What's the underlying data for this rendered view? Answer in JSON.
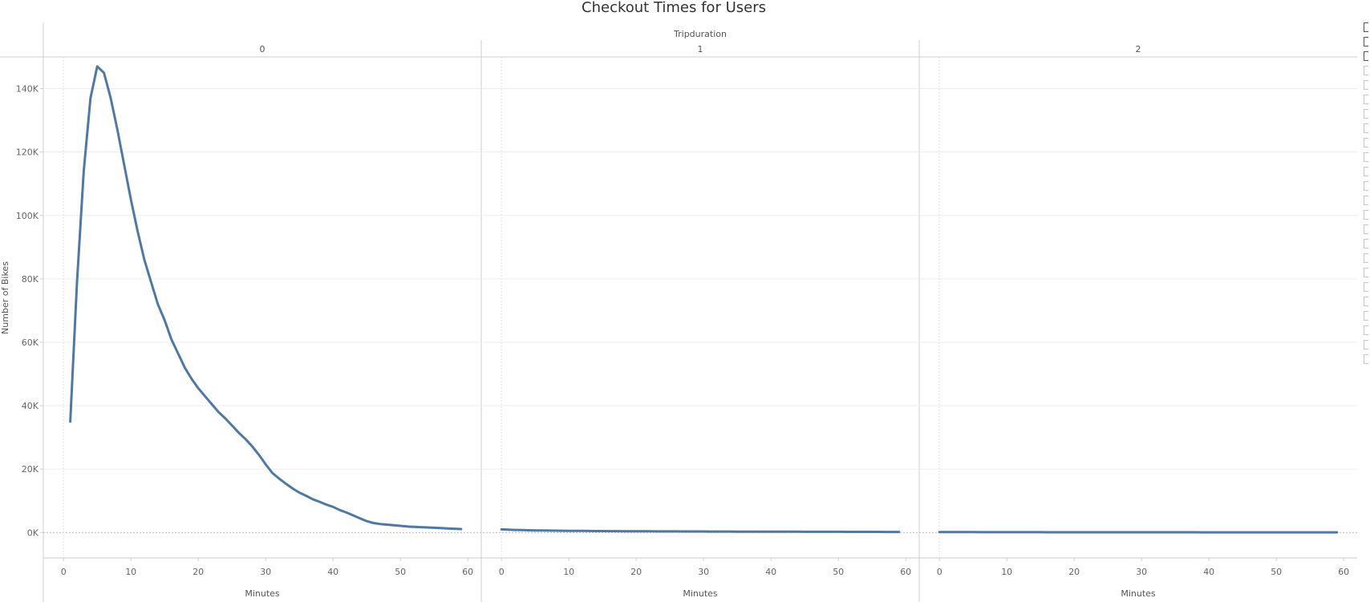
{
  "chart_data": {
    "type": "line",
    "title": "Checkout Times for Users",
    "column_header": "Tripduration",
    "ylabel": "Number of Bikes",
    "xlabel": "Minutes",
    "ylim": [
      -8000,
      150000
    ],
    "xlim": [
      -3,
      62
    ],
    "y_ticks": [
      0,
      20000,
      40000,
      60000,
      80000,
      100000,
      120000,
      140000
    ],
    "y_tick_labels": [
      "0K",
      "20K",
      "40K",
      "60K",
      "80K",
      "100K",
      "120K",
      "140K"
    ],
    "x_ticks": [
      0,
      10,
      20,
      30,
      40,
      50,
      60
    ],
    "x_tick_labels": [
      "0",
      "10",
      "20",
      "30",
      "40",
      "50",
      "60"
    ],
    "grid": true,
    "line_color": "#4e79a7",
    "panels": [
      {
        "label": "0",
        "x": [
          1,
          2,
          3,
          4,
          5,
          6,
          7,
          8,
          9,
          10,
          11,
          12,
          13,
          14,
          15,
          16,
          17,
          18,
          19,
          20,
          21,
          22,
          23,
          24,
          25,
          26,
          27,
          28,
          29,
          30,
          31,
          32,
          33,
          34,
          35,
          36,
          37,
          38,
          39,
          40,
          41,
          42,
          43,
          44,
          45,
          46,
          47,
          48,
          49,
          50,
          51,
          52,
          53,
          54,
          55,
          56,
          57,
          58,
          59
        ],
        "y": [
          35000,
          79000,
          114000,
          137000,
          147000,
          145000,
          137000,
          127000,
          116000,
          105000,
          95000,
          86000,
          79000,
          72000,
          67000,
          61000,
          56500,
          52000,
          48500,
          45500,
          43000,
          40500,
          38000,
          36000,
          33800,
          31500,
          29500,
          27200,
          24500,
          21500,
          18800,
          17000,
          15400,
          13900,
          12600,
          11600,
          10500,
          9700,
          8800,
          8100,
          7100,
          6300,
          5400,
          4500,
          3600,
          3000,
          2700,
          2500,
          2300,
          2100,
          1900,
          1800,
          1700,
          1600,
          1500,
          1400,
          1300,
          1200,
          1100
        ]
      },
      {
        "label": "1",
        "x": [
          0,
          1,
          2,
          3,
          4,
          5,
          6,
          7,
          8,
          9,
          10,
          11,
          12,
          13,
          14,
          15,
          16,
          17,
          18,
          19,
          20,
          21,
          22,
          23,
          24,
          25,
          26,
          27,
          28,
          29,
          30,
          31,
          32,
          33,
          34,
          35,
          36,
          37,
          38,
          39,
          40,
          41,
          42,
          43,
          44,
          45,
          46,
          47,
          48,
          49,
          50,
          51,
          52,
          53,
          54,
          55,
          56,
          57,
          58,
          59
        ],
        "y": [
          1000,
          900,
          820,
          760,
          710,
          670,
          640,
          610,
          590,
          570,
          550,
          530,
          510,
          495,
          480,
          465,
          450,
          440,
          430,
          420,
          410,
          400,
          390,
          380,
          372,
          365,
          358,
          350,
          343,
          336,
          330,
          324,
          318,
          312,
          306,
          300,
          295,
          290,
          285,
          280,
          275,
          270,
          265,
          260,
          255,
          250,
          246,
          242,
          238,
          234,
          230,
          226,
          222,
          218,
          214,
          210,
          206,
          202,
          198,
          195
        ]
      },
      {
        "label": "2",
        "x": [
          0,
          1,
          2,
          3,
          4,
          5,
          6,
          7,
          8,
          9,
          10,
          11,
          12,
          13,
          14,
          15,
          16,
          17,
          18,
          19,
          20,
          21,
          22,
          23,
          24,
          25,
          26,
          27,
          28,
          29,
          30,
          31,
          32,
          33,
          34,
          35,
          36,
          37,
          38,
          39,
          40,
          41,
          42,
          43,
          44,
          45,
          46,
          47,
          48,
          49,
          50,
          51,
          52,
          53,
          54,
          55,
          56,
          57,
          58,
          59
        ],
        "y": [
          150,
          145,
          140,
          136,
          132,
          128,
          125,
          122,
          119,
          116,
          113,
          111,
          109,
          107,
          105,
          103,
          101,
          99,
          97,
          96,
          95,
          94,
          93,
          92,
          91,
          90,
          89,
          88,
          87,
          86,
          85,
          84,
          83,
          82,
          81,
          80,
          79,
          78,
          77,
          76,
          75,
          74,
          73,
          72,
          71,
          70,
          69,
          68,
          67,
          66,
          65,
          64,
          63,
          62,
          61,
          60,
          59,
          58,
          57,
          56
        ]
      }
    ]
  }
}
